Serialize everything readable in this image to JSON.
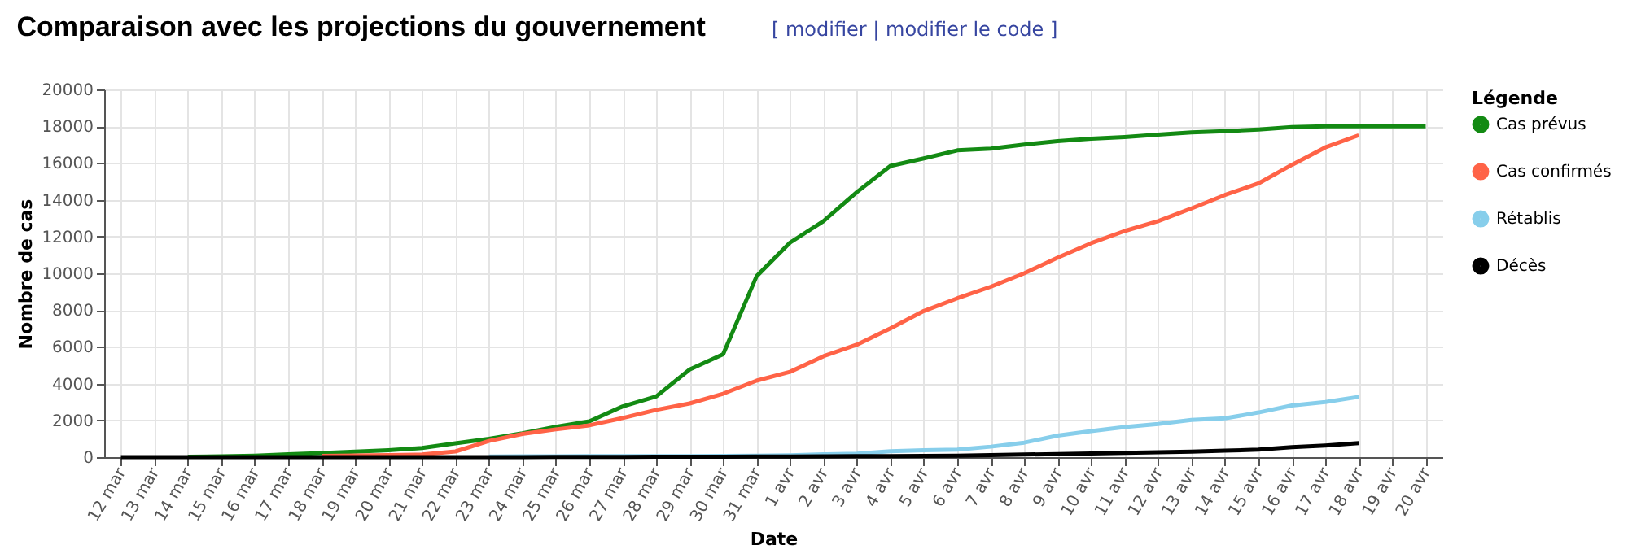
{
  "chart_data": {
    "type": "line",
    "title": "Comparaison avec les projections du gouvernement",
    "annotations": [
      "[ modifier | modifier le code ]"
    ],
    "xlabel": "Date",
    "ylabel": "Nombre de cas",
    "legend_title": "Légende",
    "categories": [
      "12 mar",
      "13 mar",
      "14 mar",
      "15 mar",
      "16 mar",
      "17 mar",
      "18 mar",
      "19 mar",
      "20 mar",
      "21 mar",
      "22 mar",
      "23 mar",
      "24 mar",
      "25 mar",
      "26 mar",
      "27 mar",
      "28 mar",
      "29 mar",
      "30 mar",
      "31 mar",
      "1 avr",
      "2 avr",
      "3 avr",
      "4 avr",
      "5 avr",
      "6 avr",
      "7 avr",
      "8 avr",
      "9 avr",
      "10 avr",
      "11 avr",
      "12 avr",
      "13 avr",
      "14 avr",
      "15 avr",
      "16 avr",
      "17 avr",
      "18 avr",
      "19 avr",
      "20 avr"
    ],
    "series": [
      {
        "name": "Cas prévus",
        "color": "#138a13",
        "values": [
          null,
          null,
          20,
          40,
          80,
          150,
          220,
          300,
          380,
          500,
          750,
          1000,
          1300,
          1650,
          1950,
          2760,
          3300,
          4770,
          5600,
          9840,
          11670,
          12840,
          14420,
          15840,
          16250,
          16690,
          16780,
          17000,
          17190,
          17320,
          17410,
          17540,
          17670,
          17730,
          17820,
          17950,
          18000,
          18000,
          18000,
          18000
        ]
      },
      {
        "name": "Cas confirmés",
        "color": "#ff6347",
        "values": [
          null,
          null,
          null,
          null,
          null,
          null,
          70,
          90,
          110,
          140,
          310,
          880,
          1260,
          1510,
          1730,
          2130,
          2570,
          2920,
          3450,
          4160,
          4640,
          5490,
          6120,
          7000,
          7950,
          8640,
          9270,
          10000,
          10850,
          11640,
          12300,
          12840,
          13530,
          14260,
          14890,
          15900,
          16850,
          17510,
          null,
          null
        ]
      },
      {
        "name": "Rétablis",
        "color": "#87ceeb",
        "values": [
          null,
          null,
          null,
          null,
          null,
          null,
          null,
          null,
          null,
          null,
          null,
          30,
          40,
          40,
          50,
          50,
          60,
          60,
          70,
          80,
          100,
          150,
          190,
          320,
          380,
          410,
          570,
          790,
          1170,
          1420,
          1640,
          1800,
          2020,
          2110,
          2430,
          2810,
          3000,
          3280,
          null,
          null
        ]
      },
      {
        "name": "Décès",
        "color": "#000000",
        "values": [
          0,
          0,
          0,
          0,
          0,
          0,
          0,
          0,
          0,
          0,
          0,
          0,
          0,
          10,
          10,
          10,
          20,
          20,
          20,
          30,
          30,
          40,
          50,
          60,
          70,
          80,
          110,
          140,
          170,
          200,
          230,
          260,
          300,
          350,
          410,
          540,
          630,
          760,
          null,
          null
        ]
      }
    ],
    "ylim": [
      0,
      20000
    ],
    "yticks": [
      0,
      2000,
      4000,
      6000,
      8000,
      10000,
      12000,
      14000,
      16000,
      18000,
      20000
    ],
    "grid": true,
    "legend": "top right",
    "marker": "none",
    "line_style": "solid"
  }
}
